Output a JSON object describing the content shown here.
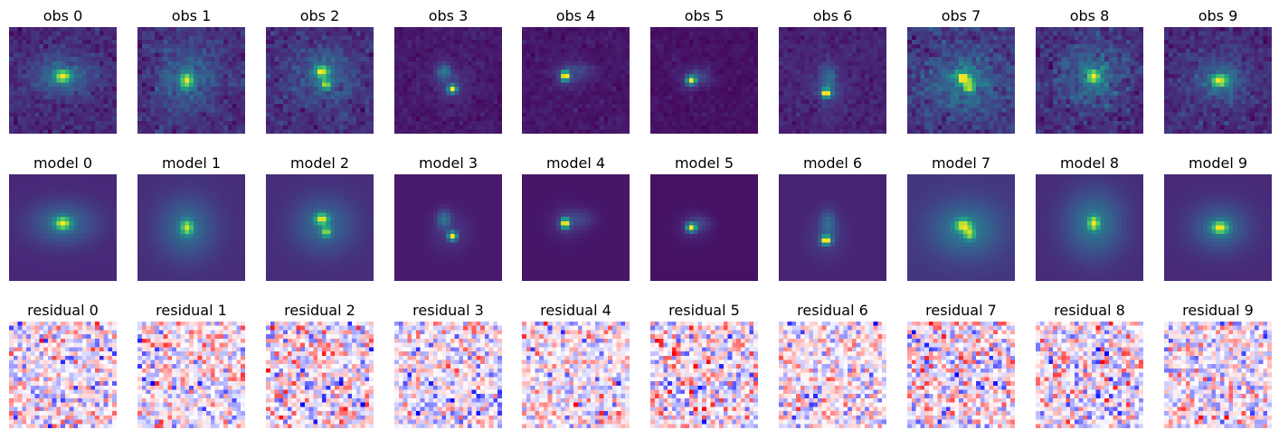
{
  "chart_data": {
    "type": "heatmap",
    "title": "",
    "rows": [
      {
        "name": "obs",
        "colormap": "viridis",
        "labels": [
          "obs 0",
          "obs 1",
          "obs 2",
          "obs 3",
          "obs 4",
          "obs 5",
          "obs 6",
          "obs 7",
          "obs 8",
          "obs 9"
        ]
      },
      {
        "name": "model",
        "colormap": "viridis",
        "labels": [
          "model 0",
          "model 1",
          "model 2",
          "model 3",
          "model 4",
          "model 5",
          "model 6",
          "model 7",
          "model 8",
          "model 9"
        ]
      },
      {
        "name": "residual",
        "colormap": "bwr",
        "labels": [
          "residual 0",
          "residual 1",
          "residual 2",
          "residual 3",
          "residual 4",
          "residual 5",
          "residual 6",
          "residual 7",
          "residual 8",
          "residual 9"
        ]
      }
    ],
    "grid_size": 25,
    "axes_visible": false,
    "sources": [
      {
        "components": [
          {
            "x": 12,
            "y": 11,
            "amp": 1.0,
            "sx": 1.3,
            "sy": 1.0
          }
        ],
        "halo_sx": 5.5,
        "halo_sy": 3.6,
        "halo_amp": 0.35,
        "background": 0.14,
        "noise": 0.06
      },
      {
        "components": [
          {
            "x": 11,
            "y": 12,
            "amp": 1.0,
            "sx": 1.0,
            "sy": 1.2
          }
        ],
        "halo_sx": 4.6,
        "halo_sy": 5.0,
        "halo_amp": 0.38,
        "background": 0.15,
        "noise": 0.08
      },
      {
        "components": [
          {
            "x": 12.5,
            "y": 10,
            "amp": 0.95,
            "sx": 1.1,
            "sy": 0.9
          },
          {
            "x": 13.5,
            "y": 13.0,
            "amp": 0.8,
            "sx": 0.8,
            "sy": 0.8
          }
        ],
        "halo_sx": 5.0,
        "halo_sy": 4.6,
        "halo_amp": 0.3,
        "background": 0.14,
        "noise": 0.07
      },
      {
        "components": [
          {
            "x": 13,
            "y": 14,
            "amp": 1.0,
            "sx": 0.7,
            "sy": 0.7
          },
          {
            "x": 11,
            "y": 10,
            "amp": 0.32,
            "sx": 1.1,
            "sy": 1.4
          }
        ],
        "halo_sx": 3.2,
        "halo_sy": 3.4,
        "halo_amp": 0.1,
        "background": 0.07,
        "noise": 0.025
      },
      {
        "components": [
          {
            "x": 9.5,
            "y": 11,
            "amp": 1.0,
            "sx": 0.7,
            "sy": 0.8
          },
          {
            "x": 13,
            "y": 10,
            "amp": 0.12,
            "sx": 2.4,
            "sy": 1.5
          }
        ],
        "halo_sx": 2.6,
        "halo_sy": 2.6,
        "halo_amp": 0.08,
        "background": 0.06,
        "noise": 0.02
      },
      {
        "components": [
          {
            "x": 9,
            "y": 12,
            "amp": 1.0,
            "sx": 0.8,
            "sy": 0.7
          },
          {
            "x": 11,
            "y": 11,
            "amp": 0.15,
            "sx": 1.8,
            "sy": 1.2
          }
        ],
        "halo_sx": 2.8,
        "halo_sy": 2.6,
        "halo_amp": 0.08,
        "background": 0.06,
        "noise": 0.02
      },
      {
        "components": [
          {
            "x": 10.5,
            "y": 15,
            "amp": 1.0,
            "sx": 0.8,
            "sy": 0.7
          },
          {
            "x": 11,
            "y": 11,
            "amp": 0.22,
            "sx": 1.3,
            "sy": 2.2
          }
        ],
        "halo_sx": 3.0,
        "halo_sy": 3.6,
        "halo_amp": 0.1,
        "background": 0.07,
        "noise": 0.03
      },
      {
        "components": [
          {
            "x": 12.5,
            "y": 11.5,
            "amp": 0.95,
            "sx": 1.3,
            "sy": 1.0
          },
          {
            "x": 14,
            "y": 13.5,
            "amp": 0.75,
            "sx": 0.9,
            "sy": 0.9
          }
        ],
        "halo_sx": 5.5,
        "halo_sy": 4.5,
        "halo_amp": 0.38,
        "background": 0.15,
        "noise": 0.09
      },
      {
        "components": [
          {
            "x": 13,
            "y": 11,
            "amp": 1.0,
            "sx": 0.9,
            "sy": 1.1
          }
        ],
        "halo_sx": 4.8,
        "halo_sy": 5.5,
        "halo_amp": 0.4,
        "background": 0.16,
        "noise": 0.09
      },
      {
        "components": [
          {
            "x": 12.5,
            "y": 12,
            "amp": 1.0,
            "sx": 1.3,
            "sy": 1.0
          }
        ],
        "halo_sx": 4.6,
        "halo_sy": 3.8,
        "halo_amp": 0.35,
        "background": 0.14,
        "noise": 0.07
      }
    ]
  }
}
